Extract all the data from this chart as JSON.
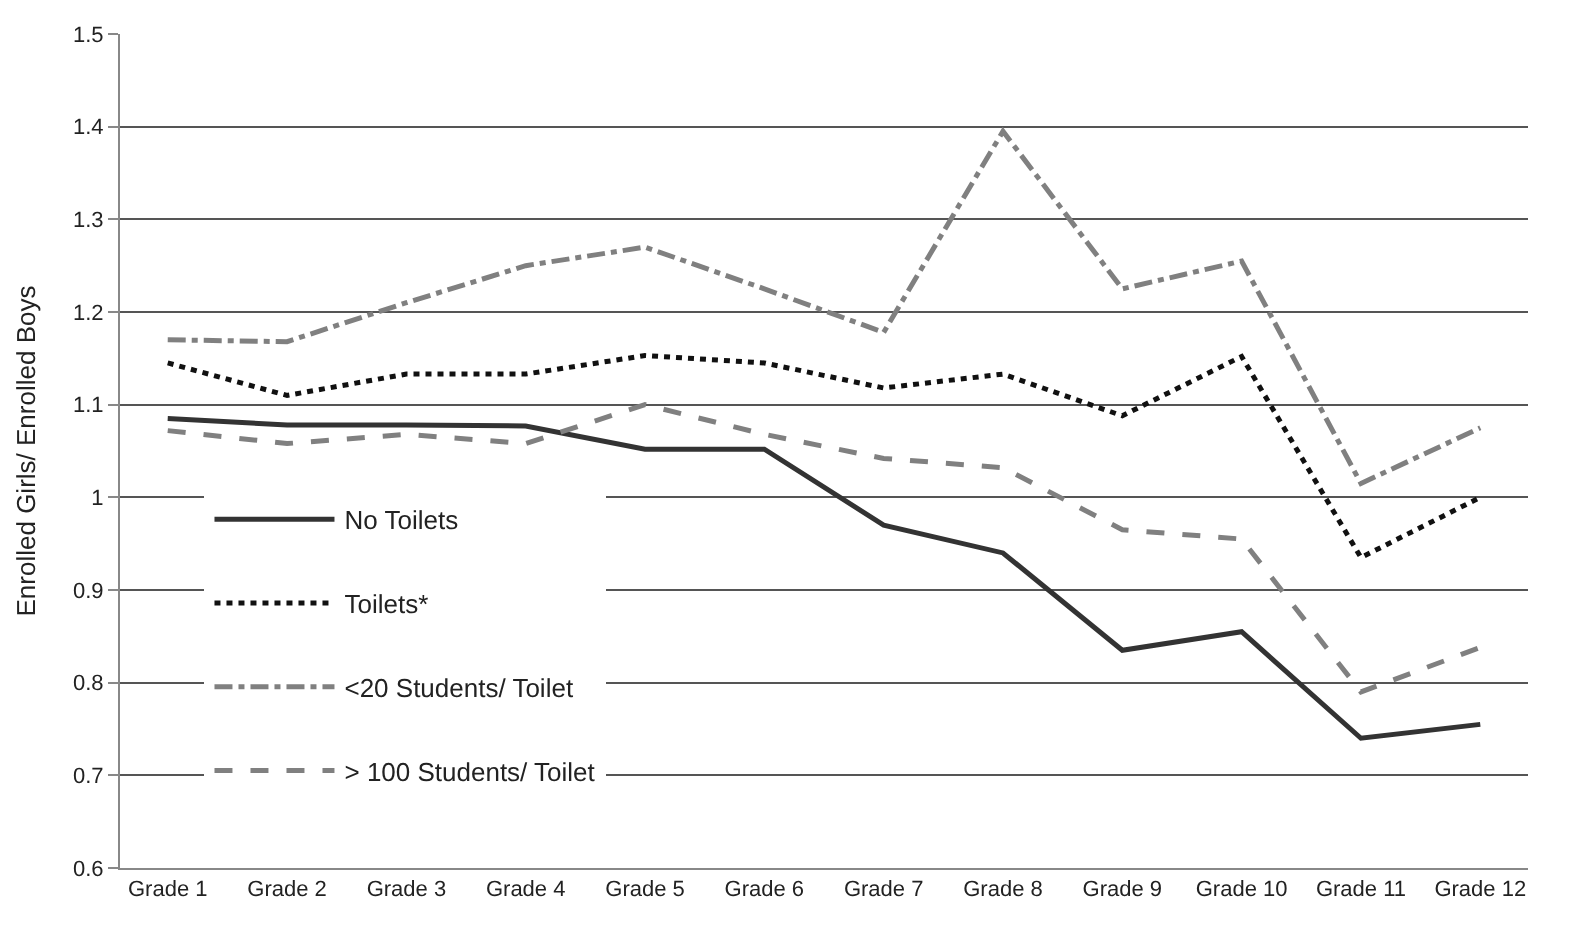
{
  "chart_data": {
    "type": "line",
    "ylabel": "Enrolled Girls/ Enrolled Boys",
    "categories": [
      "Grade 1",
      "Grade 2",
      "Grade 3",
      "Grade 4",
      "Grade 5",
      "Grade 6",
      "Grade 7",
      "Grade 8",
      "Grade 9",
      "Grade 10",
      "Grade 11",
      "Grade 12"
    ],
    "series": [
      {
        "name": "No Toilets",
        "color": "#333333",
        "line_style": "solid",
        "values": [
          1.085,
          1.078,
          1.078,
          1.077,
          1.052,
          1.052,
          0.97,
          0.94,
          0.835,
          0.855,
          0.74,
          0.755
        ]
      },
      {
        "name": "Toilets*",
        "color": "#111111",
        "line_style": "dotted",
        "values": [
          1.145,
          1.11,
          1.133,
          1.133,
          1.153,
          1.145,
          1.118,
          1.133,
          1.088,
          1.152,
          0.935,
          1.0
        ]
      },
      {
        "name": "<20 Students/ Toilet",
        "color": "#808080",
        "line_style": "dashdot",
        "values": [
          1.17,
          1.168,
          1.21,
          1.25,
          1.27,
          1.225,
          1.178,
          1.395,
          1.225,
          1.255,
          1.015,
          1.075
        ]
      },
      {
        "name": "> 100 Students/ Toilet",
        "color": "#808080",
        "line_style": "dashed",
        "values": [
          1.072,
          1.058,
          1.068,
          1.058,
          1.1,
          1.068,
          1.042,
          1.032,
          0.965,
          0.955,
          0.79,
          0.838
        ]
      }
    ],
    "ylim": [
      0.6,
      1.5
    ],
    "yticks": [
      0.6,
      0.7,
      0.8,
      0.9,
      1,
      1.1,
      1.2,
      1.3,
      1.4,
      1.5
    ],
    "grid": "y",
    "legend": "bottom left",
    "marker": "none"
  }
}
